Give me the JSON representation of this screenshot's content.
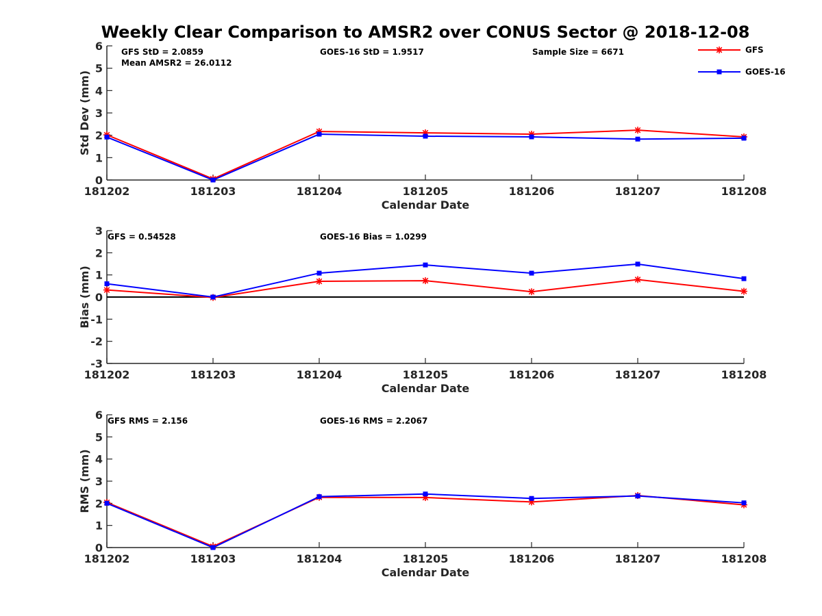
{
  "figure_title": "Weekly Clear Comparison to AMSR2 over CONUS Sector @ 2018-12-08",
  "colors": {
    "gfs": "#ff0000",
    "goes": "#0000ff",
    "axis": "#262626",
    "zero_line": "#000000"
  },
  "legend": {
    "entries": [
      "GFS",
      "GOES-16"
    ],
    "placement": "top-right"
  },
  "chart_data": [
    {
      "type": "line",
      "ylabel": "Std Dev (mm)",
      "xlabel": "Calendar Date",
      "categories": [
        "181202",
        "181203",
        "181204",
        "181205",
        "181206",
        "181207",
        "181208"
      ],
      "ylim": [
        0,
        6
      ],
      "yticks": [
        "0",
        "1",
        "2",
        "3",
        "4",
        "5",
        "6"
      ],
      "zero_line": false,
      "annotations": [
        "GFS StD = 2.0859",
        "Mean AMSR2 = 26.0112",
        "GOES-16 StD = 1.9517",
        "Sample Size = 6671"
      ],
      "series": [
        {
          "name": "GFS",
          "marker": "star",
          "values": [
            2.02,
            0.05,
            2.17,
            2.11,
            2.05,
            2.23,
            1.93
          ]
        },
        {
          "name": "GOES-16",
          "marker": "square",
          "values": [
            1.92,
            0.0,
            2.05,
            1.96,
            1.93,
            1.83,
            1.87
          ]
        }
      ]
    },
    {
      "type": "line",
      "ylabel": "Bias (mm)",
      "xlabel": "Calendar Date",
      "categories": [
        "181202",
        "181203",
        "181204",
        "181205",
        "181206",
        "181207",
        "181208"
      ],
      "ylim": [
        -3,
        3
      ],
      "yticks": [
        "-3",
        "-2",
        "-1",
        "0",
        "1",
        "2",
        "3"
      ],
      "zero_line": true,
      "annotations": [
        "GFS = 0.54528",
        "GOES-16 Bias  = 1.0299"
      ],
      "series": [
        {
          "name": "GFS",
          "marker": "star",
          "values": [
            0.32,
            -0.02,
            0.71,
            0.74,
            0.24,
            0.79,
            0.26
          ]
        },
        {
          "name": "GOES-16",
          "marker": "square",
          "values": [
            0.6,
            0.0,
            1.08,
            1.45,
            1.08,
            1.49,
            0.83
          ]
        }
      ]
    },
    {
      "type": "line",
      "ylabel": "RMS (mm)",
      "xlabel": "Calendar Date",
      "categories": [
        "181202",
        "181203",
        "181204",
        "181205",
        "181206",
        "181207",
        "181208"
      ],
      "ylim": [
        0,
        6
      ],
      "yticks": [
        "0",
        "1",
        "2",
        "3",
        "4",
        "5",
        "6"
      ],
      "zero_line": false,
      "annotations": [
        "GFS RMS = 2.156",
        "GOES-16 RMS = 2.2067"
      ],
      "series": [
        {
          "name": "GFS",
          "marker": "star",
          "values": [
            2.04,
            0.05,
            2.27,
            2.26,
            2.06,
            2.35,
            1.93
          ]
        },
        {
          "name": "GOES-16",
          "marker": "square",
          "values": [
            2.0,
            0.0,
            2.3,
            2.42,
            2.22,
            2.33,
            2.02
          ]
        }
      ]
    }
  ]
}
